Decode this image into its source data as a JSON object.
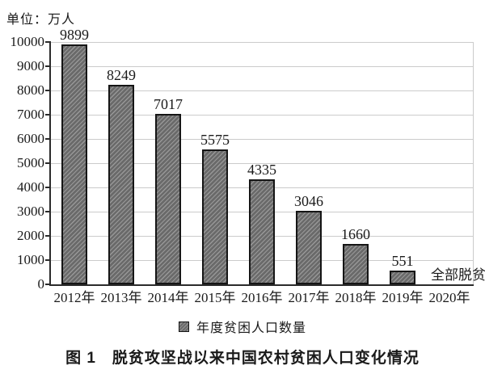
{
  "unit_label": "单位：万人",
  "legend": {
    "label": "年度贫困人口数量"
  },
  "caption": "图 1　脱贫攻坚战以来中国农村贫困人口变化情况",
  "colors": {
    "bar_fill": "#6a6a6a",
    "bar_hatch": "#989898",
    "bar_border": "#151515",
    "gridline": "#cbcbcb",
    "axis": "#2b2b2b",
    "text": "#1a1a1a",
    "background": "#ffffff"
  },
  "chart_data": {
    "type": "bar",
    "title": "图 1　脱贫攻坚战以来中国农村贫困人口变化情况",
    "unit": "单位：万人",
    "categories": [
      "2012年",
      "2013年",
      "2014年",
      "2015年",
      "2016年",
      "2017年",
      "2018年",
      "2019年",
      "2020年"
    ],
    "values": [
      9899,
      8249,
      7017,
      5575,
      4335,
      3046,
      1660,
      551,
      0
    ],
    "data_labels": [
      "9899",
      "8249",
      "7017",
      "5575",
      "4335",
      "3046",
      "1660",
      "551",
      "全部脱贫"
    ],
    "annotation": "全部脱贫",
    "legend": [
      "年度贫困人口数量"
    ],
    "xlabel": "",
    "ylabel": "万人",
    "ylim": [
      0,
      10000
    ],
    "yticks": [
      0,
      1000,
      2000,
      3000,
      4000,
      5000,
      6000,
      7000,
      8000,
      9000,
      10000
    ],
    "grid": true,
    "legend_position": "bottom",
    "bar_style": "diagonal-hatch"
  }
}
